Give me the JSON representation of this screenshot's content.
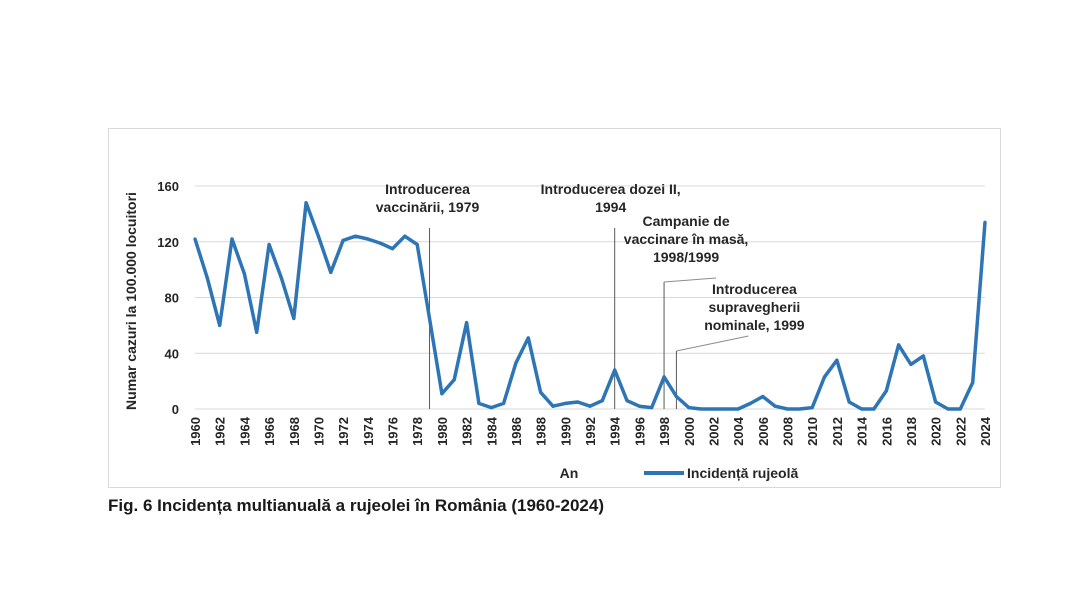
{
  "chart_data": {
    "type": "line",
    "title": "",
    "xlabel": "An",
    "ylabel": "Numar cazuri la 100.000 locuitori",
    "ylim": [
      0,
      160
    ],
    "yticks": [
      0,
      40,
      80,
      120,
      160
    ],
    "grid": true,
    "legend": "bottom-center",
    "xtick_labels": [
      "1960",
      "1962",
      "1964",
      "1966",
      "1968",
      "1970",
      "1972",
      "1974",
      "1976",
      "1978",
      "1980",
      "1982",
      "1984",
      "1986",
      "1988",
      "1990",
      "1992",
      "1994",
      "1996",
      "1998",
      "2000",
      "2002",
      "2004",
      "2006",
      "2008",
      "2010",
      "2012",
      "2014",
      "2016",
      "2018",
      "2020",
      "2022",
      "2024"
    ],
    "series": [
      {
        "name": "Incidență rujeolă",
        "color": "#2e75b6",
        "x": [
          1960,
          1961,
          1962,
          1963,
          1964,
          1965,
          1966,
          1967,
          1968,
          1969,
          1970,
          1971,
          1972,
          1973,
          1974,
          1975,
          1976,
          1977,
          1978,
          1979,
          1980,
          1981,
          1982,
          1983,
          1984,
          1985,
          1986,
          1987,
          1988,
          1989,
          1990,
          1991,
          1992,
          1993,
          1994,
          1995,
          1996,
          1997,
          1998,
          1999,
          2000,
          2001,
          2002,
          2003,
          2004,
          2005,
          2006,
          2007,
          2008,
          2009,
          2010,
          2011,
          2012,
          2013,
          2014,
          2015,
          2016,
          2017,
          2018,
          2019,
          2020,
          2021,
          2022,
          2023,
          2024
        ],
        "values": [
          122,
          94,
          60,
          122,
          97,
          55,
          118,
          94,
          65,
          148,
          124,
          98,
          121,
          124,
          122,
          119,
          115,
          124,
          118,
          65,
          11,
          21,
          62,
          4,
          1,
          4,
          33,
          51,
          12,
          2,
          4,
          5,
          2,
          6,
          28,
          6,
          2,
          1,
          23,
          9,
          1,
          0,
          0,
          0,
          0,
          4,
          9,
          2,
          0,
          0,
          1,
          23,
          35,
          5,
          0,
          0,
          13,
          46,
          32,
          38,
          5,
          0,
          0,
          19,
          134
        ]
      }
    ],
    "annotations": [
      {
        "x": 1979,
        "lines": [
          "Introducerea",
          "vaccinării, 1979"
        ]
      },
      {
        "x": 1994,
        "lines": [
          "Introducerea dozei II,",
          "1994"
        ]
      },
      {
        "x": 1998,
        "lines": [
          "Campanie de",
          "vaccinare în masă,",
          "1998/1999"
        ]
      },
      {
        "x": 1999,
        "lines": [
          "Introducerea",
          "supravegherii",
          "nominale, 1999"
        ]
      }
    ]
  },
  "caption": "Fig. 6 Incidența multianuală a rujeolei în România (1960-2024)"
}
